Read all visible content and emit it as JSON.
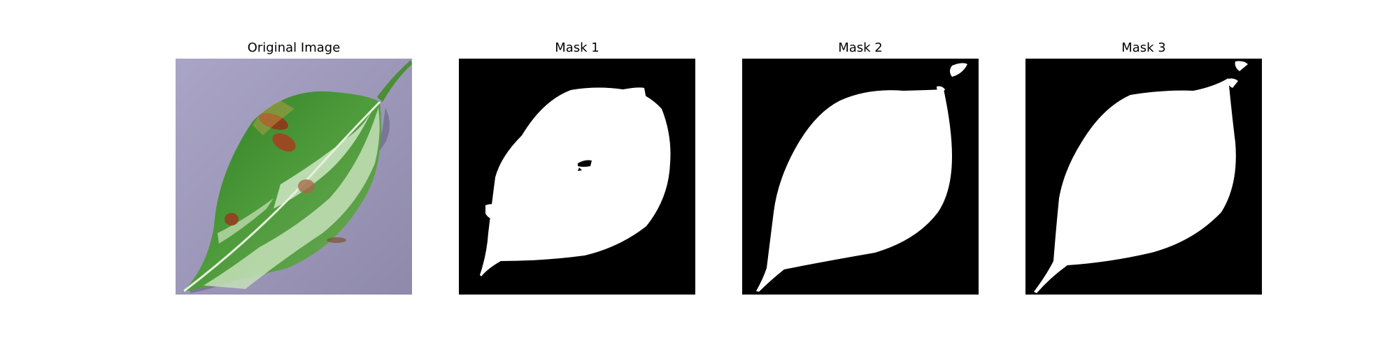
{
  "figure": {
    "panels": [
      {
        "title": "Original Image",
        "kind": "photo"
      },
      {
        "title": "Mask 1",
        "kind": "mask"
      },
      {
        "title": "Mask 2",
        "kind": "mask"
      },
      {
        "title": "Mask 3",
        "kind": "mask"
      }
    ],
    "colors": {
      "mask_background": "#000000",
      "mask_foreground": "#ffffff",
      "photo_background": "#9c97b8",
      "leaf_green": "#3f8f2e",
      "leaf_light": "#cfe6c4",
      "lesion_brown": "#8a3f1c"
    }
  }
}
